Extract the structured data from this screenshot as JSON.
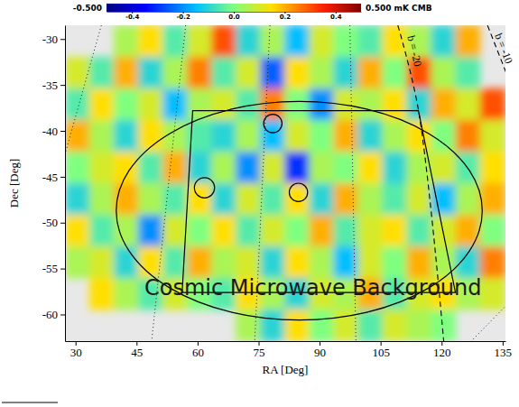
{
  "chart_data": {
    "type": "heatmap",
    "xlabel": "RA [Deg]",
    "ylabel": "Dec [Deg]",
    "annotation": "Cosmic Microwave Background",
    "xlim": [
      27.4,
      135.7
    ],
    "ylim": [
      -62.9,
      -28.5
    ],
    "xticks": [
      30,
      45,
      60,
      75,
      90,
      105,
      120,
      135
    ],
    "yticks": [
      -30,
      -35,
      -40,
      -45,
      -50,
      -55,
      -60
    ],
    "x_bins": [
      27.4,
      33.4,
      39.4,
      45.4,
      51.4,
      57.4,
      63.4,
      69.4,
      75.4,
      81.4,
      87.4,
      93.4,
      99.4,
      105.4,
      111.4,
      117.4,
      123.4,
      129.4,
      135.7
    ],
    "y_bins": [
      -28.5,
      -31.94,
      -35.38,
      -38.82,
      -42.26,
      -45.7,
      -49.14,
      -52.58,
      -56.02,
      -59.46,
      -62.9
    ],
    "cells": [
      [
        null,
        null,
        0.05,
        0.15,
        -0.05,
        0.1,
        0.3,
        -0.1,
        0.05,
        -0.15,
        0.1,
        0,
        -0.05,
        0.15,
        0.05,
        -0.1,
        0.2,
        null
      ],
      [
        0.1,
        -0.05,
        0.2,
        -0.1,
        0.05,
        0.25,
        -0.05,
        0.1,
        -0.25,
        0.15,
        0.05,
        -0.1,
        0.2,
        0,
        0.3,
        0.05,
        -0.05,
        null
      ],
      [
        -0.05,
        0.15,
        0,
        0.1,
        -0.15,
        0.05,
        0.1,
        -0.05,
        0.25,
        0,
        -0.2,
        0.1,
        0.05,
        0.15,
        -0.1,
        0.2,
        0.1,
        0.3
      ],
      [
        0.2,
        0.05,
        -0.1,
        0.15,
        0.05,
        -0.05,
        -0.1,
        0.05,
        -0.15,
        0.1,
        0,
        0.2,
        -0.1,
        0.05,
        0.15,
        0,
        0.25,
        0.1
      ],
      [
        0,
        0.1,
        0.15,
        -0.05,
        0.2,
        -0.1,
        0.05,
        -0.2,
        0.1,
        -0.3,
        0.05,
        0,
        0.15,
        -0.1,
        0.05,
        0.1,
        -0.05,
        0.15
      ],
      [
        -0.1,
        0.05,
        0.2,
        0.05,
        -0.05,
        0.15,
        -0.1,
        0.1,
        -0.05,
        0.15,
        -0.1,
        0.2,
        0.05,
        -0.05,
        0.1,
        -0.15,
        0.05,
        0.2
      ],
      [
        0.15,
        -0.05,
        0.05,
        -0.2,
        0.1,
        0,
        0.15,
        -0.05,
        0.1,
        0,
        0.2,
        -0.05,
        0.1,
        0.15,
        -0.05,
        0.1,
        0.2,
        0
      ],
      [
        0.05,
        0.1,
        -0.1,
        0.15,
        -0.05,
        0.2,
        0.05,
        0.1,
        -0.1,
        0.15,
        0.05,
        -0.15,
        0.1,
        0,
        0.2,
        0.05,
        -0.1,
        0.25
      ],
      [
        null,
        0.15,
        0.05,
        -0.05,
        0.1,
        0,
        -0.05,
        0.15,
        0.05,
        -0.1,
        0.1,
        0.05,
        0.2,
        -0.05,
        0.1,
        0.15,
        0.05,
        0.1
      ],
      [
        null,
        null,
        null,
        null,
        null,
        null,
        null,
        0.05,
        -0.1,
        0.15,
        0,
        0.1,
        -0.05,
        0.1,
        0.05,
        0,
        null,
        null
      ]
    ],
    "colorbar_range": [
      -0.5,
      0.5
    ],
    "colorbar_ticks": [
      -0.4,
      -0.2,
      {
        "value": 0,
        "label": "0.0"
      },
      0.2,
      0.4
    ],
    "colorbar_end_labels": [
      {
        "value": -0.5,
        "label": "-0.500"
      },
      {
        "value": 0.5,
        "label": "0.500 mK CMB"
      }
    ],
    "ellipse": {
      "ra": 85,
      "dec": -48.7,
      "ra_radius": 45,
      "dec_radius": 11.9
    },
    "polygon": {
      "ra": [
        58.8,
        114.3,
        123.4,
        56.2
      ],
      "dec": [
        -37.8,
        -37.8,
        -57.6,
        -57.6
      ]
    },
    "circles": {
      "ra": [
        78.5,
        61.7,
        84.8
      ],
      "dec": [
        -39.2,
        -46.2,
        -46.7
      ],
      "radius": [
        1,
        1.1,
        1
      ]
    },
    "galactic_lines": [
      {
        "name": "b = -20",
        "line_style": "dashed",
        "ra": [
          109.24,
          114.26,
          120.81
        ],
        "dec": [
          -28.51,
          -37.62,
          -64.36
        ]
      },
      {
        "name": "b = -10",
        "line_style": "dashed",
        "ra": [
          131.29,
          137.18
        ],
        "dec": [
          -28.51,
          -35.15
        ]
      }
    ],
    "graticule": [
      {
        "line_style": "dotted",
        "ra": [
          36.33,
          27.38
        ],
        "dec": [
          -28.51,
          -42.57
        ]
      },
      {
        "line_style": "dotted",
        "ra": [
          57.07,
          48.34
        ],
        "dec": [
          -28.51,
          -64.36
        ]
      },
      {
        "line_style": "dotted",
        "ra": [
          77.81,
          73.88
        ],
        "dec": [
          -28.51,
          -64.36
        ]
      },
      {
        "line_style": "dotted",
        "ra": [
          97.45,
          98.98
        ],
        "dec": [
          -28.51,
          -64.36
        ]
      },
      {
        "line_style": "dotted",
        "ra": [
          124.08,
          137.18
        ],
        "dec": [
          -64.36,
          -58.42
        ]
      }
    ]
  }
}
